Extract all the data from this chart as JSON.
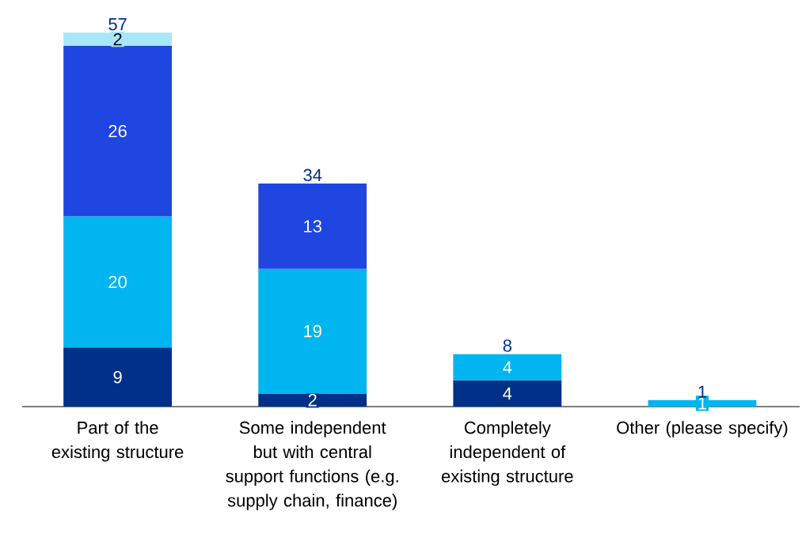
{
  "chart_data": {
    "type": "bar",
    "stacked": true,
    "data_labels": true,
    "categories": [
      "Part of the existing structure",
      "Some independent but with central support functions (e.g. supply chain, finance)",
      "Completely independent of existing structure",
      "Other (please specify)"
    ],
    "series": [
      {
        "color": "#003087",
        "values": [
          9,
          2,
          4,
          null
        ]
      },
      {
        "color": "#00b5f0",
        "values": [
          20,
          19,
          4,
          1
        ]
      },
      {
        "color": "#1f46e0",
        "values": [
          26,
          13,
          null,
          null
        ]
      },
      {
        "color": "#a8e6fa",
        "values": [
          2,
          null,
          null,
          null
        ]
      }
    ],
    "totals": [
      "57",
      "34",
      "8",
      "1"
    ]
  }
}
